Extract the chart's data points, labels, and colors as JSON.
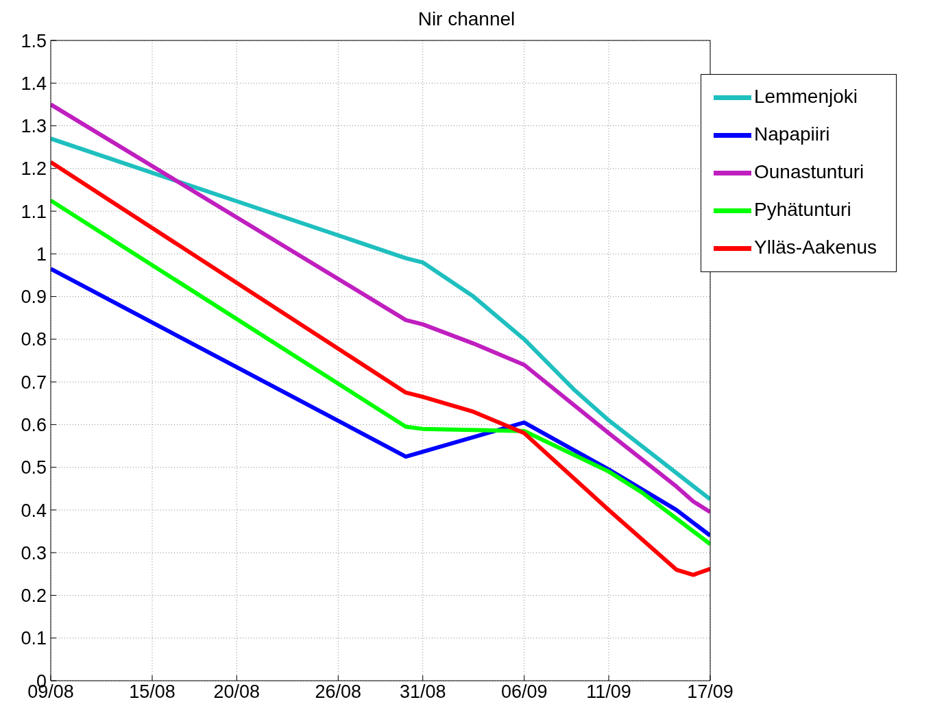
{
  "chart_data": {
    "type": "line",
    "title": "Nir channel",
    "xlim": [
      "--08-09",
      "--09-17"
    ],
    "xticks": [
      {
        "value": "--08-09",
        "label": "09/08"
      },
      {
        "value": "--08-15",
        "label": "15/08"
      },
      {
        "value": "--08-20",
        "label": "20/08"
      },
      {
        "value": "--08-26",
        "label": "26/08"
      },
      {
        "value": "--08-31",
        "label": "31/08"
      },
      {
        "value": "--09-06",
        "label": "06/09"
      },
      {
        "value": "--09-11",
        "label": "11/09"
      },
      {
        "value": "--09-17",
        "label": "17/09"
      }
    ],
    "ylim": [
      0,
      1.5
    ],
    "yticks": [
      0,
      0.1,
      0.2,
      0.3,
      0.4,
      0.5,
      0.6,
      0.7,
      0.8,
      0.9,
      1,
      1.1,
      1.2,
      1.3,
      1.4,
      1.5
    ],
    "grid": true,
    "legend": "top right",
    "marker": "none",
    "line_style": "solid",
    "series": [
      {
        "name": "Napapiiri",
        "color": "#0000ff",
        "x": [
          "--08-09",
          "--08-30",
          "--09-06",
          "--09-11",
          "--09-15",
          "--09-16",
          "--09-17"
        ],
        "values": [
          0.965,
          0.525,
          0.605,
          0.495,
          0.4,
          0.37,
          0.34
        ]
      },
      {
        "name": "Pyhätunturi",
        "color": "#00ff00",
        "x": [
          "--08-09",
          "--08-30",
          "--08-31",
          "--09-06",
          "--09-11",
          "--09-13",
          "--09-15",
          "--09-16",
          "--09-17"
        ],
        "values": [
          1.125,
          0.595,
          0.59,
          0.585,
          0.49,
          0.44,
          0.38,
          0.35,
          0.32
        ]
      },
      {
        "name": "Ylläs-Aakenus",
        "color": "#ff0000",
        "x": [
          "--08-09",
          "--08-30",
          "--08-31",
          "--09-03",
          "--09-06",
          "--09-11",
          "--09-15",
          "--09-16",
          "--09-17"
        ],
        "values": [
          1.215,
          0.675,
          0.665,
          0.63,
          0.58,
          0.4,
          0.26,
          0.248,
          0.262
        ]
      },
      {
        "name": "Lemmenjoki",
        "color": "#1fbfbf",
        "x": [
          "--08-09",
          "--08-30",
          "--08-31",
          "--09-03",
          "--09-06",
          "--09-09",
          "--09-11",
          "--09-17"
        ],
        "values": [
          1.27,
          0.99,
          0.98,
          0.9,
          0.8,
          0.68,
          0.61,
          0.425
        ]
      },
      {
        "name": "Ounastunturi",
        "color": "#bf1fbf",
        "x": [
          "--08-09",
          "--08-30",
          "--08-31",
          "--09-03",
          "--09-06",
          "--09-11",
          "--09-15",
          "--09-16",
          "--09-17"
        ],
        "values": [
          1.35,
          0.845,
          0.835,
          0.79,
          0.74,
          0.58,
          0.455,
          0.42,
          0.395
        ]
      }
    ]
  }
}
